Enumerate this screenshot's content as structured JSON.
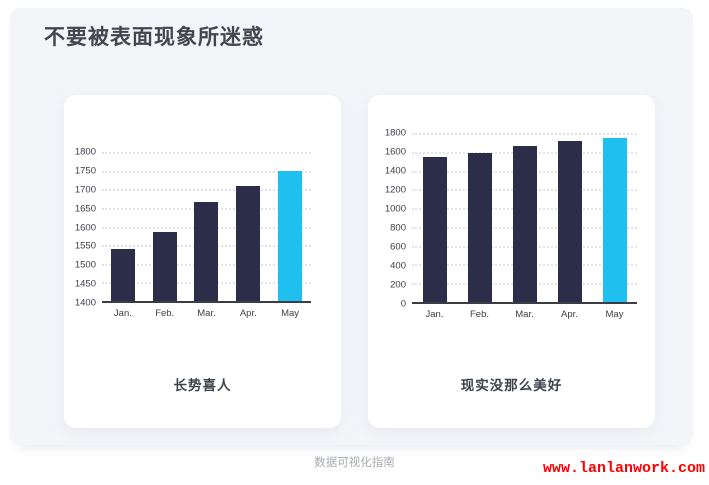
{
  "page": {
    "title": "不要被表面现象所迷惑",
    "footer_caption": "数据可视化指南",
    "footer_link": "www.lanlanwork.com"
  },
  "colors": {
    "bar_default": "#2b2d49",
    "bar_highlight": "#1fc0f0",
    "accent_red": "#fe0000",
    "panel_bg": "#f4f5f9",
    "card_bg": "#ffffff"
  },
  "chart_data": [
    {
      "type": "bar",
      "title": "长势喜人",
      "categories": [
        "Jan.",
        "Feb.",
        "Mar.",
        "Apr.",
        "May"
      ],
      "values": [
        1540,
        1585,
        1665,
        1710,
        1750
      ],
      "ylim": [
        1400,
        1800
      ],
      "ytick_step": 50,
      "yticks": [
        1400,
        1450,
        1500,
        1550,
        1600,
        1650,
        1700,
        1750,
        1800
      ],
      "highlight_index": 4,
      "grid": "horizontal-dotted",
      "legend": "none",
      "xlabel": "",
      "ylabel": ""
    },
    {
      "type": "bar",
      "title": "现实没那么美好",
      "categories": [
        "Jan.",
        "Feb.",
        "Mar.",
        "Apr.",
        "May"
      ],
      "values": [
        1540,
        1585,
        1665,
        1710,
        1750
      ],
      "ylim": [
        0,
        1800
      ],
      "ytick_step": 200,
      "yticks": [
        0,
        200,
        400,
        600,
        800,
        1000,
        1200,
        1400,
        1600,
        1800
      ],
      "highlight_index": 4,
      "grid": "horizontal-dotted",
      "legend": "none",
      "xlabel": "",
      "ylabel": ""
    }
  ]
}
